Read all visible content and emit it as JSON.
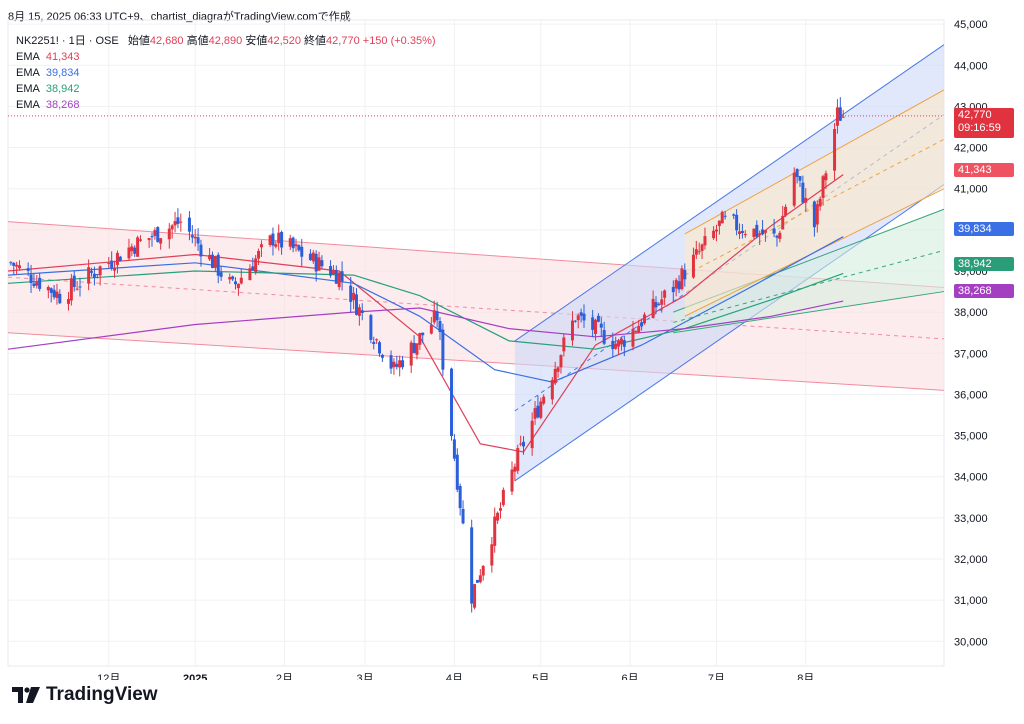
{
  "header": {
    "stamp": "8月 15, 2025 06:33 UTC+9、chartist_diagraがTradingView.comで作成",
    "symbol": "NK2251! · 1日 · OSE",
    "open_label": "始値",
    "open": "42,680",
    "high_label": "高値",
    "high": "42,890",
    "low_label": "安値",
    "low": "42,520",
    "close_label": "終値",
    "close": "42,770",
    "change": "+150 (+0.35%)"
  },
  "legend": [
    {
      "label": "EMA",
      "value": "41,343",
      "color": "#e03f55"
    },
    {
      "label": "EMA",
      "value": "39,834",
      "color": "#3b6fe0"
    },
    {
      "label": "EMA",
      "value": "38,942",
      "color": "#26a07a"
    },
    {
      "label": "EMA",
      "value": "38,268",
      "color": "#a43fc2"
    }
  ],
  "price_tags": {
    "last": "42,770",
    "countdown": "09:16:59",
    "ema1": "41,343",
    "ema2": "39,834",
    "ema3": "38,942",
    "ema4": "38,268"
  },
  "brand": {
    "name": "TradingView"
  },
  "chart_data": {
    "type": "candlestick",
    "y_ticks": [
      30000,
      31000,
      32000,
      33000,
      34000,
      35000,
      36000,
      37000,
      38000,
      39000,
      40000,
      41000,
      42000,
      43000,
      44000,
      45000
    ],
    "y_tick_labels": [
      "30,000",
      "31,000",
      "32,000",
      "33,000",
      "34,000",
      "35,000",
      "36,000",
      "37,000",
      "38,000",
      "39,000",
      "40,000",
      "41,000",
      "42,000",
      "43,000",
      "44,000",
      "45,000"
    ],
    "x_labels": [
      "12月",
      "2025",
      "2月",
      "3月",
      "4月",
      "5月",
      "6月",
      "7月",
      "8月"
    ],
    "x_label_dates": [
      "2024-12-02",
      "2025-01-01",
      "2025-02-01",
      "2025-03-01",
      "2025-04-01",
      "2025-05-01",
      "2025-06-01",
      "2025-07-01",
      "2025-08-01"
    ],
    "x_range": [
      "2024-10-28",
      "2025-09-18"
    ],
    "ylim": [
      29400,
      45100
    ],
    "last_price": 42770,
    "key_closes": [
      {
        "date": "2024-10-29",
        "close": 39200
      },
      {
        "date": "2024-11-15",
        "close": 38400
      },
      {
        "date": "2024-12-10",
        "close": 39600
      },
      {
        "date": "2024-12-27",
        "close": 40200
      },
      {
        "date": "2025-01-14",
        "close": 38600
      },
      {
        "date": "2025-01-28",
        "close": 39800
      },
      {
        "date": "2025-02-20",
        "close": 38900
      },
      {
        "date": "2025-03-11",
        "close": 36600
      },
      {
        "date": "2025-03-26",
        "close": 37900
      },
      {
        "date": "2025-04-07",
        "close": 31100
      },
      {
        "date": "2025-04-22",
        "close": 34300
      },
      {
        "date": "2025-05-13",
        "close": 37900
      },
      {
        "date": "2025-05-28",
        "close": 37200
      },
      {
        "date": "2025-06-16",
        "close": 38600
      },
      {
        "date": "2025-07-03",
        "close": 40200
      },
      {
        "date": "2025-07-22",
        "close": 39800
      },
      {
        "date": "2025-07-28",
        "close": 41400
      },
      {
        "date": "2025-08-04",
        "close": 40100
      },
      {
        "date": "2025-08-12",
        "close": 42800
      },
      {
        "date": "2025-08-14",
        "close": 42770
      }
    ],
    "ema_series": [
      {
        "period_label": "EMA",
        "last": 41343,
        "color": "#e03f55",
        "points": [
          [
            "2024-10-28",
            39000
          ],
          [
            "2025-01-01",
            39400
          ],
          [
            "2025-02-20",
            39000
          ],
          [
            "2025-03-20",
            37400
          ],
          [
            "2025-04-10",
            34800
          ],
          [
            "2025-04-25",
            34600
          ],
          [
            "2025-05-20",
            37200
          ],
          [
            "2025-06-20",
            38400
          ],
          [
            "2025-07-20",
            40100
          ],
          [
            "2025-08-14",
            41343
          ]
        ]
      },
      {
        "period_label": "EMA",
        "last": 39834,
        "color": "#3b6fe0",
        "points": [
          [
            "2024-10-28",
            38900
          ],
          [
            "2025-01-01",
            39200
          ],
          [
            "2025-02-25",
            38700
          ],
          [
            "2025-03-20",
            37900
          ],
          [
            "2025-04-15",
            36600
          ],
          [
            "2025-05-05",
            36300
          ],
          [
            "2025-06-05",
            37200
          ],
          [
            "2025-07-10",
            38500
          ],
          [
            "2025-08-14",
            39834
          ]
        ]
      },
      {
        "period_label": "EMA",
        "last": 38942,
        "color": "#26a07a",
        "points": [
          [
            "2024-10-28",
            38700
          ],
          [
            "2025-01-01",
            39000
          ],
          [
            "2025-02-25",
            38900
          ],
          [
            "2025-03-20",
            38400
          ],
          [
            "2025-04-20",
            37300
          ],
          [
            "2025-05-20",
            37100
          ],
          [
            "2025-06-20",
            37600
          ],
          [
            "2025-07-20",
            38300
          ],
          [
            "2025-08-14",
            38942
          ]
        ]
      },
      {
        "period_label": "EMA",
        "last": 38268,
        "color": "#a43fc2",
        "points": [
          [
            "2024-10-28",
            37100
          ],
          [
            "2025-01-01",
            37700
          ],
          [
            "2025-02-25",
            38000
          ],
          [
            "2025-03-20",
            38100
          ],
          [
            "2025-04-20",
            37600
          ],
          [
            "2025-05-20",
            37400
          ],
          [
            "2025-06-20",
            37600
          ],
          [
            "2025-07-20",
            37900
          ],
          [
            "2025-08-14",
            38268
          ]
        ]
      }
    ],
    "channels": [
      {
        "name_hint": "pink-descending",
        "color": "#f28b9b",
        "fill": "#fbdfe2",
        "upper": [
          [
            "2024-10-28",
            40200
          ],
          [
            "2025-09-18",
            38600
          ]
        ],
        "lower": [
          [
            "2024-10-28",
            37500
          ],
          [
            "2025-09-18",
            36100
          ]
        ]
      },
      {
        "name_hint": "blue-ascending",
        "color": "#4a78e6",
        "fill": "#cdd9fa",
        "upper": [
          [
            "2025-04-22",
            37300
          ],
          [
            "2025-09-18",
            44500
          ]
        ],
        "lower": [
          [
            "2025-04-22",
            33900
          ],
          [
            "2025-09-18",
            41100
          ]
        ]
      },
      {
        "name_hint": "green-ascending",
        "color": "#3aa57c",
        "fill": "#d6eedf",
        "upper": [
          [
            "2025-06-16",
            38000
          ],
          [
            "2025-09-18",
            40500
          ]
        ],
        "lower": [
          [
            "2025-06-16",
            37500
          ],
          [
            "2025-09-18",
            38500
          ]
        ]
      },
      {
        "name_hint": "orange-ascending",
        "color": "#f0a340",
        "fill": "#fde8c7",
        "upper": [
          [
            "2025-06-20",
            39900
          ],
          [
            "2025-09-18",
            43400
          ]
        ],
        "lower": [
          [
            "2025-06-20",
            37900
          ],
          [
            "2025-09-18",
            41000
          ]
        ]
      }
    ]
  }
}
